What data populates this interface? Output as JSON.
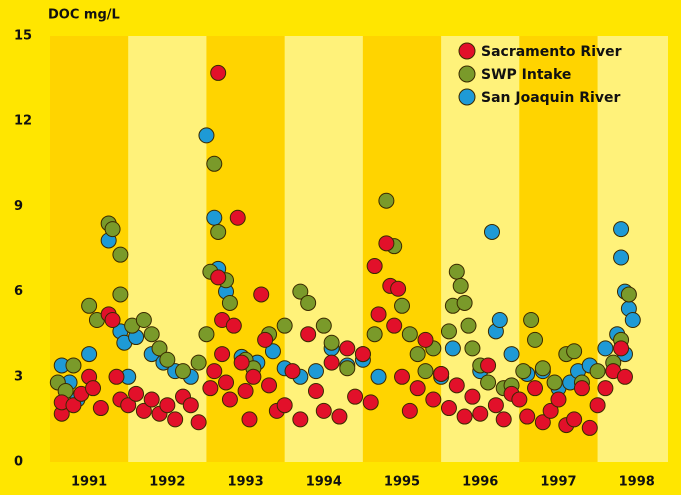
{
  "chart_data": {
    "type": "scatter",
    "y_label": "DOC mg/L",
    "xlim": [
      1991,
      1998.9
    ],
    "ylim": [
      0,
      15
    ],
    "xticks": [
      {
        "value": 1991.5,
        "label": "1991"
      },
      {
        "value": 1992.5,
        "label": "1992"
      },
      {
        "value": 1993.5,
        "label": "1993"
      },
      {
        "value": 1994.5,
        "label": "1994"
      },
      {
        "value": 1995.5,
        "label": "1995"
      },
      {
        "value": 1996.5,
        "label": "1996"
      },
      {
        "value": 1997.5,
        "label": "1997"
      },
      {
        "value": 1998.5,
        "label": "1998"
      }
    ],
    "yticks": [
      0,
      3,
      6,
      9,
      12,
      15
    ],
    "band_colors": [
      "#ffd400",
      "#fff27a"
    ],
    "legend": "top-right",
    "series": [
      {
        "name": "Sacramento River",
        "color": "#e2102a",
        "x": [
          1991.15,
          1991.15,
          1991.3,
          1991.4,
          1991.5,
          1991.55,
          1991.65,
          1991.75,
          1991.8,
          1991.85,
          1991.9,
          1992.0,
          1992.1,
          1992.2,
          1992.3,
          1992.4,
          1992.5,
          1992.6,
          1992.7,
          1992.8,
          1992.9,
          1993.05,
          1993.1,
          1993.15,
          1993.15,
          1993.2,
          1993.2,
          1993.25,
          1993.3,
          1993.35,
          1993.4,
          1993.45,
          1993.5,
          1993.55,
          1993.6,
          1993.7,
          1993.75,
          1993.8,
          1993.9,
          1994.0,
          1994.1,
          1994.2,
          1994.3,
          1994.4,
          1994.5,
          1994.6,
          1994.7,
          1994.8,
          1994.9,
          1995.0,
          1995.1,
          1995.15,
          1995.2,
          1995.3,
          1995.35,
          1995.4,
          1995.45,
          1995.5,
          1995.6,
          1995.7,
          1995.8,
          1995.9,
          1996.0,
          1996.1,
          1996.2,
          1996.3,
          1996.4,
          1996.5,
          1996.6,
          1996.7,
          1996.8,
          1996.9,
          1997.0,
          1997.1,
          1997.2,
          1997.3,
          1997.4,
          1997.5,
          1997.6,
          1997.7,
          1997.8,
          1997.9,
          1998.0,
          1998.1,
          1998.2,
          1998.3,
          1998.35
        ],
        "values": [
          1.7,
          2.1,
          2.0,
          2.4,
          3.0,
          2.6,
          1.9,
          5.2,
          5.0,
          3.0,
          2.2,
          2.0,
          2.4,
          1.8,
          2.2,
          1.7,
          2.0,
          1.5,
          2.3,
          2.0,
          1.4,
          2.6,
          3.2,
          13.7,
          6.5,
          5.0,
          3.8,
          2.8,
          2.2,
          4.8,
          8.6,
          3.5,
          2.5,
          1.5,
          3.0,
          5.9,
          4.3,
          2.7,
          1.8,
          2.0,
          3.2,
          1.5,
          4.5,
          2.5,
          1.8,
          3.5,
          1.6,
          4.0,
          2.3,
          3.8,
          2.1,
          6.9,
          5.2,
          7.7,
          6.2,
          4.8,
          6.1,
          3.0,
          1.8,
          2.6,
          4.3,
          2.2,
          3.1,
          1.9,
          2.7,
          1.6,
          2.3,
          1.7,
          3.4,
          2.0,
          1.5,
          2.4,
          2.2,
          1.6,
          2.6,
          1.4,
          1.8,
          2.2,
          1.3,
          1.5,
          2.6,
          1.2,
          2.0,
          2.6,
          3.2,
          4.0,
          3.0
        ]
      },
      {
        "name": "SWP Intake",
        "color": "#7a9a2a",
        "x": [
          1991.1,
          1991.2,
          1991.3,
          1991.5,
          1991.6,
          1991.75,
          1991.8,
          1991.9,
          1991.9,
          1992.05,
          1992.2,
          1992.3,
          1992.4,
          1992.5,
          1992.7,
          1992.9,
          1993.0,
          1993.05,
          1993.1,
          1993.15,
          1993.25,
          1993.3,
          1993.5,
          1993.6,
          1993.8,
          1994.0,
          1994.2,
          1994.3,
          1994.5,
          1994.6,
          1994.8,
          1995.0,
          1995.15,
          1995.3,
          1995.4,
          1995.5,
          1995.6,
          1995.7,
          1995.8,
          1995.9,
          1996.0,
          1996.1,
          1996.15,
          1996.2,
          1996.25,
          1996.3,
          1996.35,
          1996.4,
          1996.5,
          1996.6,
          1996.8,
          1996.9,
          1997.05,
          1997.15,
          1997.2,
          1997.3,
          1997.45,
          1997.6,
          1997.7,
          1997.8,
          1998.0,
          1998.2,
          1998.3,
          1998.4
        ],
        "values": [
          2.8,
          2.5,
          3.4,
          5.5,
          5.0,
          8.4,
          8.2,
          5.9,
          7.3,
          4.8,
          5.0,
          4.5,
          4.0,
          3.6,
          3.2,
          3.5,
          4.5,
          6.7,
          10.5,
          8.1,
          6.4,
          5.6,
          3.6,
          3.3,
          4.5,
          4.8,
          6.0,
          5.6,
          4.8,
          4.2,
          3.3,
          3.8,
          4.5,
          9.2,
          7.6,
          5.5,
          4.5,
          3.8,
          3.2,
          4.0,
          3.1,
          4.6,
          5.5,
          6.7,
          6.2,
          5.6,
          4.8,
          4.0,
          3.4,
          2.8,
          2.6,
          2.7,
          3.2,
          5.0,
          4.3,
          3.3,
          2.8,
          3.8,
          3.9,
          2.8,
          3.2,
          3.5,
          4.3,
          5.9
        ]
      },
      {
        "name": "San Joaquin River",
        "color": "#1e9ad6",
        "x": [
          1991.15,
          1991.25,
          1991.35,
          1991.5,
          1991.75,
          1991.9,
          1991.95,
          1992.0,
          1992.1,
          1992.3,
          1992.45,
          1992.6,
          1992.8,
          1993.0,
          1993.1,
          1993.15,
          1993.25,
          1993.45,
          1993.65,
          1993.85,
          1994.0,
          1994.2,
          1994.4,
          1994.6,
          1994.8,
          1995.0,
          1995.2,
          1996.0,
          1996.15,
          1996.5,
          1996.65,
          1996.7,
          1996.75,
          1996.9,
          1997.1,
          1997.3,
          1997.5,
          1997.65,
          1997.75,
          1997.9,
          1998.1,
          1998.25,
          1998.3,
          1998.3,
          1998.35,
          1998.4,
          1998.45,
          1998.35
        ],
        "values": [
          3.4,
          2.8,
          2.2,
          3.8,
          7.8,
          4.6,
          4.2,
          3.0,
          4.4,
          3.8,
          3.5,
          3.2,
          3.0,
          11.5,
          8.6,
          6.8,
          6.0,
          3.7,
          3.5,
          3.9,
          3.3,
          3.0,
          3.2,
          4.0,
          3.4,
          3.6,
          3.0,
          3.0,
          4.0,
          3.2,
          8.1,
          4.6,
          5.0,
          3.8,
          3.1,
          3.2,
          2.6,
          2.8,
          3.2,
          3.4,
          4.0,
          4.5,
          8.2,
          7.2,
          6.0,
          5.4,
          5.0,
          3.8
        ]
      }
    ]
  }
}
